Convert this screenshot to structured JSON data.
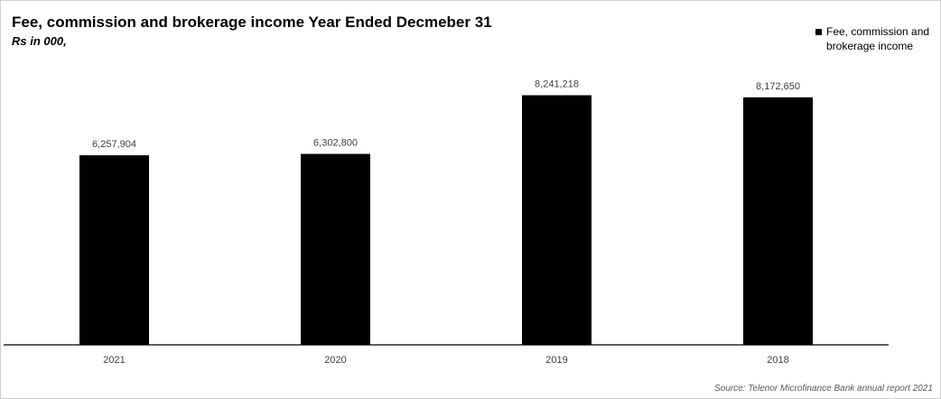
{
  "chart_data": {
    "type": "bar",
    "title": "Fee, commission and brokerage income Year Ended Decmeber 31",
    "subtitle": "Rs in 000,",
    "categories": [
      "2021",
      "2020",
      "2019",
      "2018"
    ],
    "series": [
      {
        "name": "Fee, commission and brokerage income",
        "values": [
          6257904,
          6302800,
          8241218,
          8172650
        ],
        "data_labels": [
          "6,257,904",
          "6,302,800",
          "8,241,218",
          "8,172,650"
        ],
        "color": "#000000"
      }
    ],
    "ylim": [
      0,
      9000000
    ],
    "grid": false,
    "legend_position": "top-right",
    "xlabel": "",
    "ylabel": ""
  },
  "source": "Source: Telenor Microfinance Bank annual report 2021"
}
